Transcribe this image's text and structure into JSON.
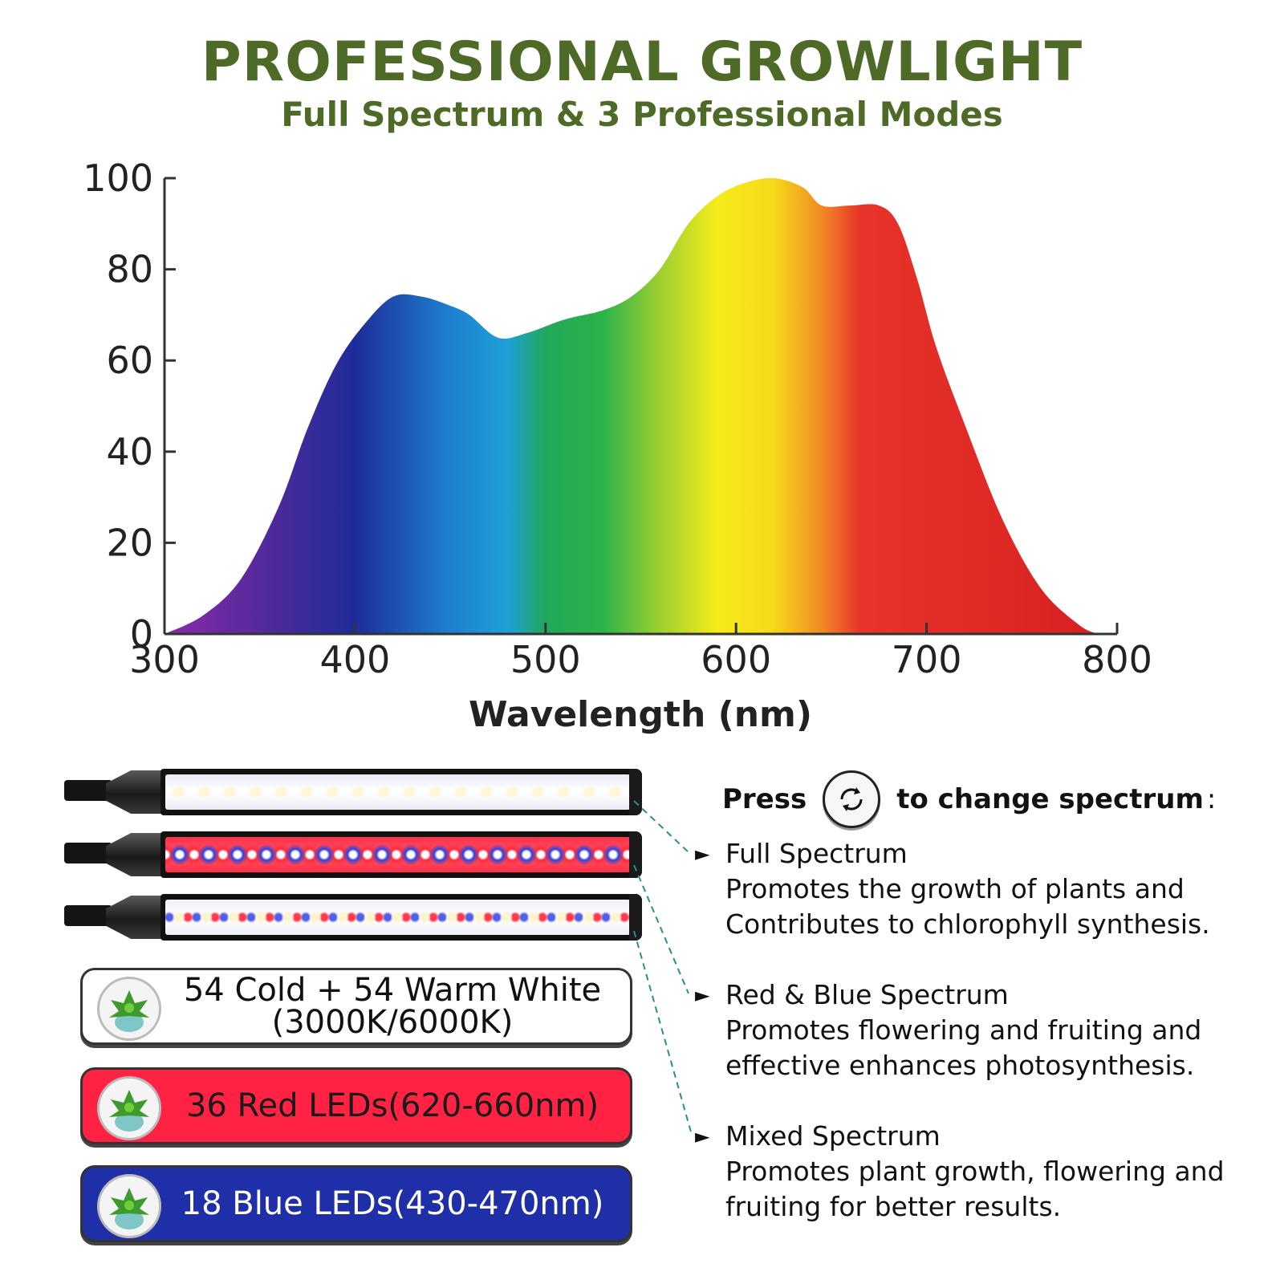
{
  "header": {
    "title": "PROFESSIONAL GROWLIGHT",
    "subtitle": "Full Spectrum & 3 Professional Modes"
  },
  "chart_data": {
    "type": "area",
    "title": "",
    "xlabel": "Wavelength (nm)",
    "ylabel": "",
    "xlim": [
      300,
      800
    ],
    "ylim": [
      0,
      100
    ],
    "x_ticks": [
      "300",
      "400",
      "500",
      "600",
      "700",
      "800"
    ],
    "y_ticks": [
      "0",
      "20",
      "40",
      "60",
      "80",
      "100"
    ],
    "grid": false,
    "series": [
      {
        "x": [
          300,
          320,
          340,
          360,
          375,
          390,
          405,
          420,
          435,
          450,
          460,
          475,
          490,
          510,
          530,
          545,
          560,
          575,
          590,
          605,
          620,
          635,
          645,
          660,
          675,
          685,
          695,
          705,
          720,
          740,
          760,
          780,
          790
        ],
        "values": [
          0,
          4,
          12,
          28,
          45,
          59,
          68,
          74,
          74,
          72,
          70,
          65,
          66,
          69,
          71,
          74,
          80,
          90,
          96,
          99,
          100,
          98,
          94,
          94,
          94,
          90,
          78,
          63,
          46,
          25,
          10,
          2,
          0
        ]
      }
    ],
    "colors": [
      "#6a1e9a",
      "#1e2c9a",
      "#1e90d8",
      "#2bb34a",
      "#f5ec1a",
      "#f0a020",
      "#e8342a",
      "#d61f22"
    ]
  },
  "modes": {
    "press_label": "Press",
    "press_suffix": "to change spectrum",
    "press_colon": ":",
    "button_icon": "refresh-arrows-icon",
    "items": [
      {
        "arrow": "►",
        "name": "Full Spectrum",
        "line1": "Promotes the growth of plants and",
        "line2": "Contributes to chlorophyll synthesis."
      },
      {
        "arrow": "►",
        "name": "Red & Blue Spectrum",
        "line1": "Promotes flowering and fruiting and",
        "line2": "effective enhances photosynthesis."
      },
      {
        "arrow": "►",
        "name": "Mixed Spectrum",
        "line1": "Promotes plant growth, flowering and",
        "line2": "fruiting for better results."
      }
    ]
  },
  "leds": [
    {
      "line1": "54 Cold + 54 Warm White",
      "line2": "(3000K/6000K)",
      "icon": "succulent-plant-icon"
    },
    {
      "line1": "36 Red LEDs(620-660nm)",
      "icon": "succulent-plant-icon"
    },
    {
      "line1": "18 Blue LEDs(430-470nm)",
      "icon": "succulent-plant-icon"
    }
  ]
}
